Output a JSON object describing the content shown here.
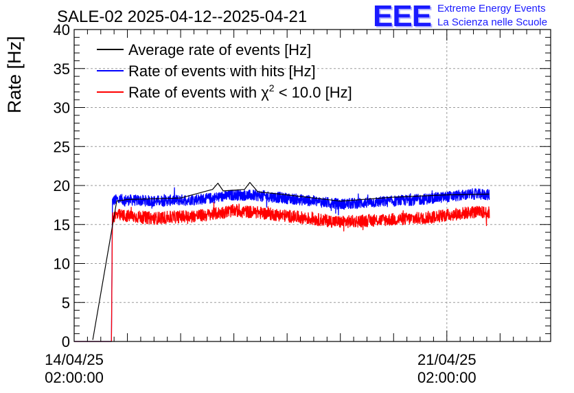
{
  "logo": {
    "mark": "EEE",
    "line1": "Extreme Energy Events",
    "line2": "La Scienza nelle Scuole"
  },
  "chart_data": {
    "type": "line",
    "title": "SALE-02 2025-04-12--2025-04-21",
    "ylabel": "Rate [Hz]",
    "xlabel": "",
    "ylim": [
      0,
      40
    ],
    "yticks": [
      0,
      5,
      10,
      15,
      20,
      25,
      30,
      35,
      40
    ],
    "xlim_days": [
      -0.0,
      8.95
    ],
    "x_start": "2025-04-14 02:00",
    "x_end": "2025-04-23 00:48",
    "xticks": [
      {
        "day": 0,
        "label_date": "14/04/25",
        "label_time": "02:00:00"
      },
      {
        "day": 7,
        "label_date": "21/04/25",
        "label_time": "02:00:00"
      }
    ],
    "grid": true,
    "legend_position": "top-left",
    "series": [
      {
        "name": "Average rate of events [Hz]",
        "legend_label": "Average rate of events [Hz]",
        "color": "#000000",
        "x": [
          0.35,
          0.8,
          1.0,
          2.0,
          2.6,
          2.7,
          2.8,
          3.2,
          3.3,
          3.45,
          4.0,
          5.0,
          6.0,
          7.0,
          7.8
        ],
        "y": [
          0.2,
          18.0,
          18.2,
          18.4,
          19.5,
          20.3,
          19.3,
          19.5,
          20.4,
          19.2,
          18.8,
          18.0,
          18.5,
          18.8,
          18.9
        ]
      },
      {
        "name": "Rate of events with hits [Hz]",
        "legend_label": "Rate of events with hits [Hz]",
        "color": "#0000ff",
        "noise": 0.7,
        "x": [
          0.0,
          0.7,
          0.72,
          0.8,
          1.5,
          2.5,
          3.0,
          3.5,
          4.5,
          5.0,
          5.5,
          6.5,
          7.5,
          7.8
        ],
        "y": [
          0.0,
          0.0,
          18.0,
          18.2,
          18.0,
          18.3,
          18.8,
          18.7,
          18.0,
          17.6,
          17.8,
          18.2,
          18.9,
          18.8
        ]
      },
      {
        "name": "Rate of events with chi2 < 10.0 [Hz]",
        "legend_label": "Rate of events with χ² < 10.0 [Hz]",
        "legend_prefix": "Rate of events with ",
        "legend_symbol": "χ",
        "legend_sup": "2",
        "legend_suffix": " < 10.0 [Hz]",
        "color": "#ff0000",
        "noise": 0.8,
        "x": [
          0.0,
          0.7,
          0.72,
          0.8,
          1.5,
          2.5,
          3.0,
          3.5,
          4.5,
          5.0,
          5.5,
          6.5,
          7.5,
          7.8
        ],
        "y": [
          0.0,
          0.0,
          16.0,
          16.2,
          15.8,
          16.2,
          16.8,
          16.5,
          15.7,
          15.3,
          15.5,
          15.8,
          16.6,
          16.5
        ]
      }
    ]
  }
}
